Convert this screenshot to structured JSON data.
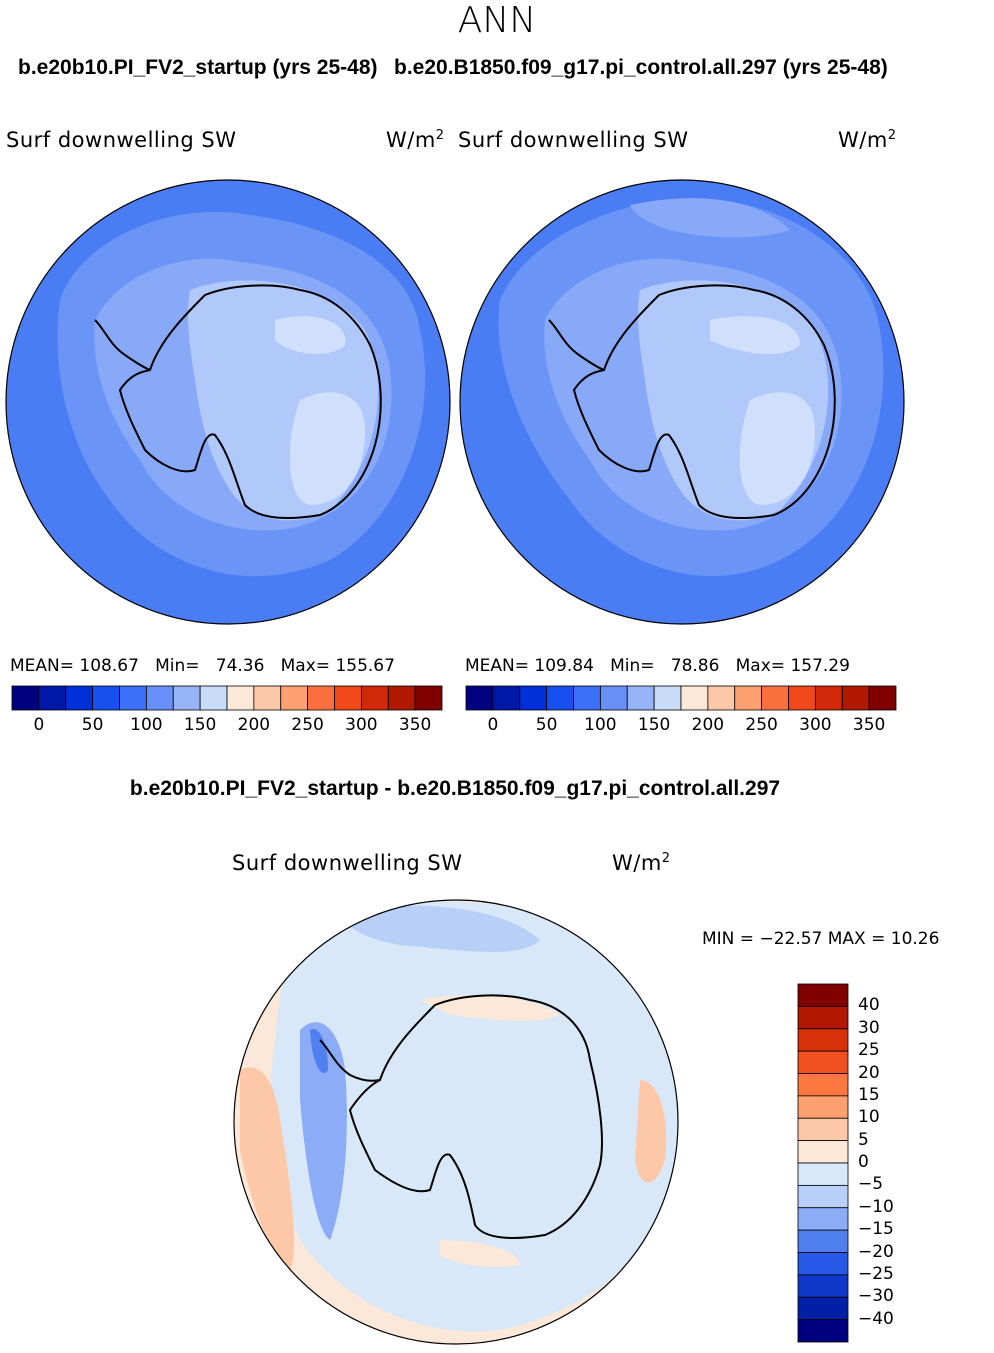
{
  "title": "ANN",
  "panels": [
    {
      "case_title": "b.e20b10.PI_FV2_startup (yrs 25-48)",
      "variable": "Surf downwelling SW",
      "units": "W/m",
      "units_sup": "2",
      "stats": {
        "mean_label": "MEAN=",
        "mean": "108.67",
        "min_label": "Min=",
        "min": "74.36",
        "max_label": "Max=",
        "max": "155.67"
      }
    },
    {
      "case_title": "b.e20.B1850.f09_g17.pi_control.all.297 (yrs 25-48)",
      "variable": "Surf downwelling SW",
      "units": "W/m",
      "units_sup": "2",
      "stats": {
        "mean_label": "MEAN=",
        "mean": "109.84",
        "min_label": "Min=",
        "min": "78.86",
        "max_label": "Max=",
        "max": "157.29"
      }
    }
  ],
  "colorbar_abs": {
    "colors": [
      "#000080",
      "#0018a8",
      "#0030d8",
      "#1850f0",
      "#3c70f8",
      "#6890f8",
      "#98b4f8",
      "#c8dcf8",
      "#fce8d8",
      "#fcc8a8",
      "#fca070",
      "#fc7040",
      "#f04818",
      "#d02808",
      "#b01800",
      "#800000"
    ],
    "tick_labels": [
      "0",
      "50",
      "100",
      "150",
      "200",
      "250",
      "300",
      "350"
    ]
  },
  "diff": {
    "title": "b.e20b10.PI_FV2_startup - b.e20.B1850.f09_g17.pi_control.all.297",
    "variable": "Surf downwelling SW",
    "units": "W/m",
    "units_sup": "2",
    "min_max": "MIN = −22.57 MAX =  10.26",
    "colorbar": {
      "colors": [
        "#800000",
        "#b01800",
        "#d83008",
        "#f05020",
        "#fc7840",
        "#fca070",
        "#fcc8a8",
        "#fce8d8",
        "#d8e8f8",
        "#b8d0f8",
        "#8cacf8",
        "#5080f0",
        "#2858e8",
        "#1038c8",
        "#0020a8",
        "#000080"
      ],
      "labels": [
        "40",
        "30",
        "25",
        "20",
        "15",
        "10",
        "5",
        "0",
        "−5",
        "−10",
        "−15",
        "−20",
        "−25",
        "−30",
        "−40"
      ]
    }
  },
  "chart_data": [
    {
      "type": "heatmap",
      "title": "b.e20b10.PI_FV2_startup (yrs 25-48)",
      "variable": "Surf downwelling SW",
      "units": "W/m^2",
      "projection": "south polar stereographic",
      "mean": 108.67,
      "min": 74.36,
      "max": 155.67,
      "colorbar_ticks": [
        0,
        50,
        100,
        150,
        200,
        250,
        300,
        350
      ]
    },
    {
      "type": "heatmap",
      "title": "b.e20.B1850.f09_g17.pi_control.all.297 (yrs 25-48)",
      "variable": "Surf downwelling SW",
      "units": "W/m^2",
      "projection": "south polar stereographic",
      "mean": 109.84,
      "min": 78.86,
      "max": 157.29,
      "colorbar_ticks": [
        0,
        50,
        100,
        150,
        200,
        250,
        300,
        350
      ]
    },
    {
      "type": "heatmap",
      "title": "b.e20b10.PI_FV2_startup - b.e20.B1850.f09_g17.pi_control.all.297",
      "variable": "Surf downwelling SW",
      "units": "W/m^2",
      "projection": "south polar stereographic",
      "min": -22.57,
      "max": 10.26,
      "colorbar_levels": [
        40,
        30,
        25,
        20,
        15,
        10,
        5,
        0,
        -5,
        -10,
        -15,
        -20,
        -25,
        -30,
        -40
      ]
    }
  ]
}
